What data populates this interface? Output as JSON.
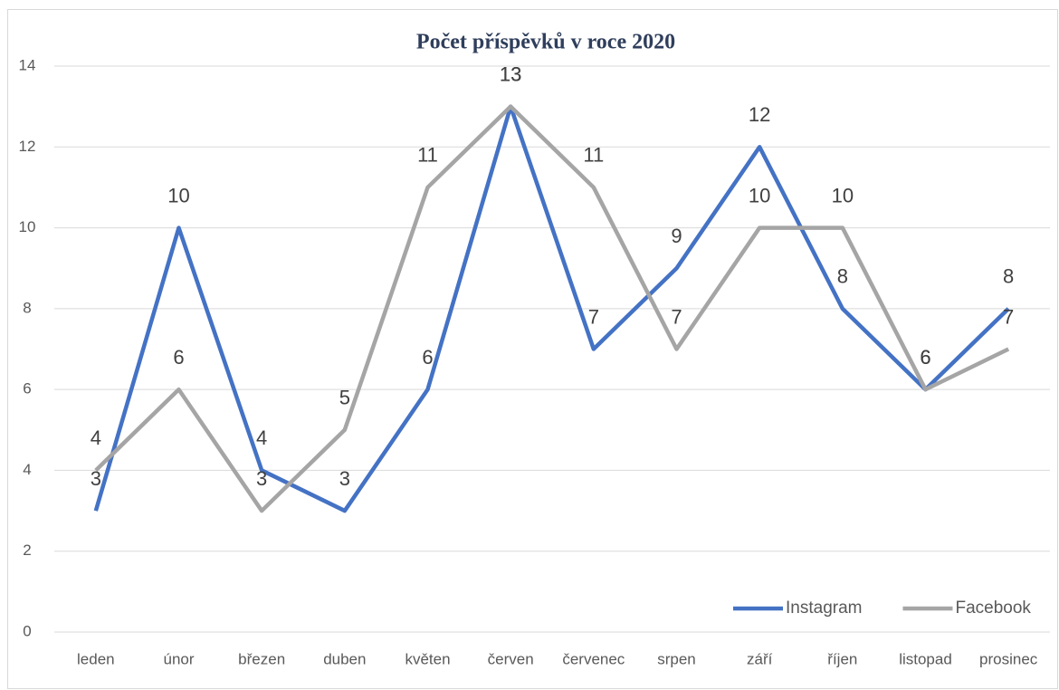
{
  "chart_data": {
    "type": "line",
    "title": "Počet příspěvků v roce 2020",
    "categories": [
      "leden",
      "únor",
      "březen",
      "duben",
      "květen",
      "červen",
      "červenec",
      "srpen",
      "září",
      "říjen",
      "listopad",
      "prosinec"
    ],
    "series": [
      {
        "name": "Instagram",
        "color": "#4472c4",
        "values": [
          3,
          10,
          4,
          3,
          6,
          13,
          7,
          9,
          12,
          8,
          6,
          8
        ]
      },
      {
        "name": "Facebook",
        "color": "#a5a5a5",
        "values": [
          4,
          6,
          3,
          5,
          11,
          13,
          11,
          7,
          10,
          10,
          6,
          7
        ]
      }
    ],
    "ylim": [
      0,
      14
    ],
    "yticks": [
      0,
      2,
      4,
      6,
      8,
      10,
      12,
      14
    ],
    "grid": true,
    "legend": "bottom-right"
  }
}
